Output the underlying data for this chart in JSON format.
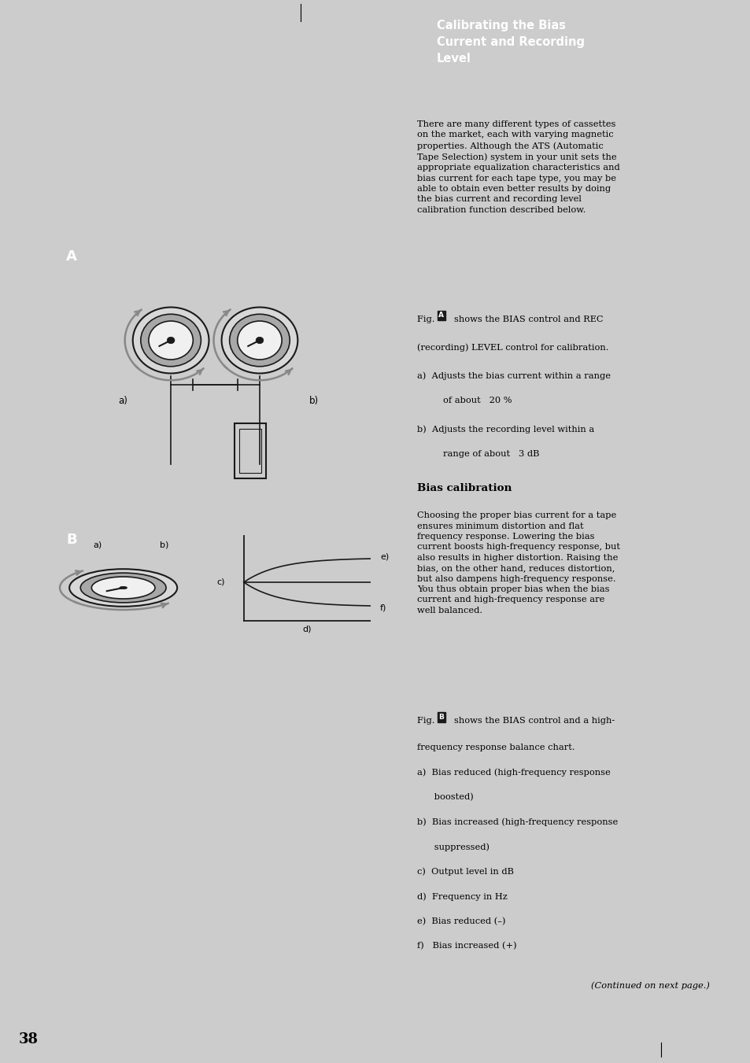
{
  "page_bg": "#cccccc",
  "left_bg": "#cccccc",
  "right_bg": "#ffffff",
  "right_inner_bg": "#ffffff",
  "header_bg": "#7a7070",
  "header_text_color": "#ffffff",
  "header_text": "Calibrating the Bias\nCurrent and Recording\nLevel",
  "body_text_color": "#000000",
  "para1": "There are many different types of cassettes\non the market, each with varying magnetic\nproperties. Although the ATS (Automatic\nTape Selection) system in your unit sets the\nappropriate equalization characteristics and\nbias current for each tape type, you may be\nable to obtain even better results by doing\nthe bias current and recording level\ncalibration function described below.",
  "fig_A_ref1": "Fig. ",
  "fig_A_ref2": " shows the BIAS control and REC",
  "fig_A_ref3": "(recording) LEVEL control for calibration.",
  "fig_A_a": "a)  Adjusts the bias current within a range",
  "fig_A_a2": "      of about   20 %",
  "fig_A_b": "b)  Adjusts the recording level within a",
  "fig_A_b2": "      range of about   3 dB",
  "bias_header": "Bias calibration",
  "bias_body": "Choosing the proper bias current for a tape\nensures minimum distortion and flat\nfrequency response. Lowering the bias\ncurrent boosts high-frequency response, but\nalso results in higher distortion. Raising the\nbias, on the other hand, reduces distortion,\nbut also dampens high-frequency response.\nYou thus obtain proper bias when the bias\ncurrent and high-frequency response are\nwell balanced.",
  "fig_B_ref1": "Fig. ",
  "fig_B_ref2": " shows the BIAS control and a high-",
  "fig_B_ref3": "frequency response balance chart.",
  "fig_B_items": [
    "a)  Bias reduced (high-frequency response",
    "      boosted)",
    "b)  Bias increased (high-frequency response",
    "      suppressed)",
    "c)  Output level in dB",
    "d)  Frequency in Hz",
    "e)  Bias reduced (–)",
    "f)   Bias increased (+)"
  ],
  "continued": "(Continued on next page.)",
  "page_num": "38",
  "knob_outer_color": "#d8d8d8",
  "knob_mid_color": "#a8a8a8",
  "knob_inner_color": "#f0f0f0",
  "knob_dark": "#1a1a1a",
  "arrow_color": "#888888",
  "line_color": "#1a1a1a"
}
